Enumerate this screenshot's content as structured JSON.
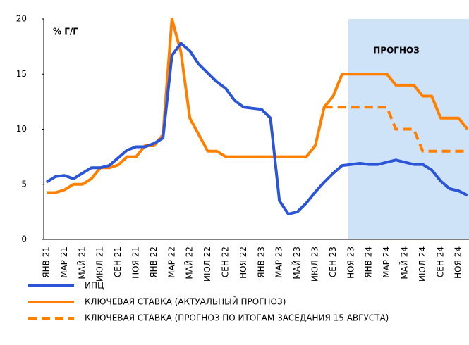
{
  "chart_data": {
    "type": "line",
    "annotations": [
      "% Г/Г",
      "ПРОГНОЗ"
    ],
    "categories": [
      "ЯНВ 21",
      null,
      "МАР 21",
      null,
      "МАЙ 21",
      null,
      "ИЮЛ 21",
      null,
      "СЕН 21",
      null,
      "НОЯ 21",
      null,
      "ЯНВ 22",
      null,
      "МАР 22",
      null,
      "МАЙ 22",
      null,
      "ИЮЛ 22",
      null,
      "СЕН 22",
      null,
      "НОЯ 22",
      null,
      "ЯНВ 23",
      null,
      "МАР 23",
      null,
      "МАЙ 23",
      null,
      "ИЮЛ 23",
      null,
      "СЕН 23",
      null,
      "НОЯ 23",
      null,
      "ЯНВ 24",
      null,
      "МАР 24",
      null,
      "МАЙ 24",
      null,
      "ИЮЛ 24",
      null,
      "СЕН 24",
      null,
      "НОЯ 24",
      null
    ],
    "series": [
      {
        "name": "ИПЦ",
        "color": "#2b54d6",
        "dashed": false,
        "values": [
          5.2,
          5.7,
          5.8,
          5.5,
          6.0,
          6.5,
          6.5,
          6.7,
          7.4,
          8.1,
          8.4,
          8.4,
          8.7,
          9.2,
          16.7,
          17.8,
          17.1,
          15.9,
          15.1,
          14.3,
          13.7,
          12.6,
          12.0,
          11.9,
          11.8,
          11.0,
          3.5,
          2.3,
          2.5,
          3.3,
          4.3,
          5.2,
          6.0,
          6.7,
          6.8,
          6.9,
          6.8,
          6.8,
          7.0,
          7.2,
          7.0,
          6.8,
          6.8,
          6.3,
          5.3,
          4.6,
          4.4,
          4.0
        ]
      },
      {
        "name": "КЛЮЧЕВАЯ СТАВКА (АКТУАЛЬНЫЙ ПРОГНОЗ)",
        "color": "#ff8000",
        "dashed": false,
        "values": [
          4.25,
          4.25,
          4.5,
          5.0,
          5.0,
          5.5,
          6.5,
          6.5,
          6.75,
          7.5,
          7.5,
          8.5,
          8.5,
          9.5,
          20,
          17,
          11,
          9.5,
          8,
          8,
          7.5,
          7.5,
          7.5,
          7.5,
          7.5,
          7.5,
          7.5,
          7.5,
          7.5,
          7.5,
          8.5,
          12,
          13,
          15,
          15,
          15,
          15,
          15,
          15,
          14,
          14,
          14,
          13,
          13,
          11,
          11,
          11,
          10
        ]
      },
      {
        "name": "КЛЮЧЕВАЯ СТАВКА (ПРОГНОЗ ПО ИТОГАМ ЗАСЕДАНИЯ 15 АВГУСТА)",
        "color": "#ff8000",
        "dashed": true,
        "values": [
          null,
          null,
          null,
          null,
          null,
          null,
          null,
          null,
          null,
          null,
          null,
          null,
          null,
          null,
          null,
          null,
          null,
          null,
          null,
          null,
          null,
          null,
          null,
          null,
          null,
          null,
          null,
          null,
          null,
          null,
          null,
          12,
          12,
          12,
          12,
          12,
          12,
          12,
          12,
          10,
          10,
          10,
          8,
          8,
          8,
          8,
          8,
          8
        ]
      }
    ],
    "ylim": [
      0,
      20
    ],
    "yticks": [
      0,
      5,
      10,
      15,
      20
    ],
    "grid": false,
    "legend": "bottom"
  }
}
